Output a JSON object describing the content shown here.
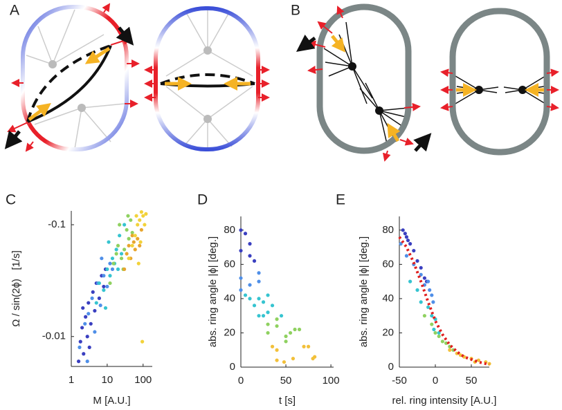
{
  "panels": {
    "A": "A",
    "B": "B"
  },
  "chart_data": [
    {
      "type": "scatter",
      "panel": "C",
      "xlabel": "M [A.U.]",
      "ylabel": "Ω / sin(2ϕ)   [1/s]",
      "xscale": "log",
      "yscale": "log",
      "xlim": [
        1,
        180
      ],
      "ylim": [
        -0.0054,
        -0.133
      ],
      "xticks": [
        1,
        10,
        100
      ],
      "yticks": [
        -0.1,
        -0.01
      ],
      "series": [
        {
          "color": "#3a3fc0",
          "x": [
            1.6,
            1.8,
            2,
            2.2,
            2.5,
            2.8,
            3,
            3.5,
            4,
            4.5,
            5,
            6,
            7,
            8,
            2.1,
            3.2,
            9
          ],
          "values": [
            -0.006,
            -0.009,
            -0.012,
            -0.007,
            -0.015,
            -0.01,
            -0.02,
            -0.013,
            -0.025,
            -0.017,
            -0.03,
            -0.022,
            -0.035,
            -0.028,
            -0.018,
            -0.008,
            -0.04
          ]
        },
        {
          "color": "#4f8fe8",
          "x": [
            1.7,
            2.4,
            3,
            3.8,
            4.5,
            5.5,
            6.5,
            8,
            10,
            12,
            14,
            2.8,
            7
          ],
          "values": [
            -0.008,
            -0.013,
            -0.016,
            -0.022,
            -0.011,
            -0.03,
            -0.019,
            -0.035,
            -0.028,
            -0.045,
            -0.04,
            -0.006,
            -0.05
          ]
        },
        {
          "color": "#36c4d0",
          "x": [
            5,
            6,
            8,
            10,
            12,
            14,
            16,
            18,
            20,
            25,
            9,
            11,
            22,
            30
          ],
          "values": [
            -0.02,
            -0.03,
            -0.026,
            -0.04,
            -0.035,
            -0.05,
            -0.045,
            -0.06,
            -0.04,
            -0.055,
            -0.018,
            -0.07,
            -0.08,
            -0.1
          ]
        },
        {
          "color": "#8fd160",
          "x": [
            12,
            15,
            18,
            20,
            25,
            30,
            35,
            40,
            45,
            28,
            22,
            38,
            50
          ],
          "values": [
            -0.03,
            -0.045,
            -0.055,
            -0.065,
            -0.05,
            -0.06,
            -0.09,
            -0.075,
            -0.11,
            -0.04,
            -0.1,
            -0.12,
            -0.085
          ]
        },
        {
          "color": "#e8a52e",
          "x": [
            30,
            35,
            45,
            55,
            60,
            70,
            80,
            90,
            40,
            50
          ],
          "values": [
            -0.04,
            -0.055,
            -0.05,
            -0.07,
            -0.06,
            -0.075,
            -0.065,
            -0.09,
            -0.065,
            -0.08
          ]
        },
        {
          "color": "#f2d23a",
          "x": [
            40,
            50,
            60,
            70,
            80,
            90,
            100,
            110,
            120,
            75,
            65,
            95,
            85
          ],
          "values": [
            -0.05,
            -0.065,
            -0.08,
            -0.1,
            -0.11,
            -0.13,
            -0.12,
            -0.1,
            -0.125,
            -0.045,
            -0.12,
            -0.009,
            -0.07
          ]
        }
      ]
    },
    {
      "type": "scatter",
      "panel": "D",
      "xlabel": "t [s]",
      "ylabel": "abs. ring angle |ϕ| [deg.]",
      "xlim": [
        0,
        103
      ],
      "ylim": [
        0,
        88
      ],
      "xticks": [
        0,
        50,
        100
      ],
      "yticks": [
        0,
        20,
        40,
        60,
        80
      ],
      "series": [
        {
          "color": "#3a3fc0",
          "x": [
            0,
            5,
            10,
            15,
            0,
            10
          ],
          "values": [
            80,
            78,
            72,
            62,
            68,
            65
          ]
        },
        {
          "color": "#4f8fe8",
          "x": [
            20,
            20,
            0,
            10,
            0
          ],
          "values": [
            50,
            55,
            52,
            48,
            45
          ]
        },
        {
          "color": "#36c4d0",
          "x": [
            25,
            30,
            20,
            30,
            10,
            20,
            5,
            15,
            25,
            35,
            45
          ],
          "values": [
            38,
            42,
            40,
            32,
            40,
            30,
            42,
            36,
            30,
            36,
            30
          ]
        },
        {
          "color": "#8fd160",
          "x": [
            30,
            40,
            50,
            40,
            50,
            60,
            30,
            55,
            65
          ],
          "values": [
            25,
            28,
            15,
            24,
            18,
            22,
            20,
            20,
            22
          ]
        },
        {
          "color": "#f2c03a",
          "x": [
            35,
            40,
            58,
            70,
            80,
            40,
            48,
            75,
            82
          ],
          "values": [
            12,
            4,
            5,
            12,
            5,
            10,
            3,
            12,
            6
          ]
        }
      ]
    },
    {
      "type": "scatter",
      "panel": "E",
      "xlabel": "rel. ring intensity [A.U.]",
      "ylabel": "abs. ring angle |ϕ| [deg.]",
      "xlim": [
        -50,
        75
      ],
      "ylim": [
        0,
        88
      ],
      "xticks": [
        -50,
        0,
        50
      ],
      "yticks": [
        0,
        20,
        40,
        60,
        80
      ],
      "series": [
        {
          "color": "#3a3fc0",
          "x": [
            -45,
            -42,
            -40,
            -38,
            -35,
            -30,
            -25,
            -20,
            -15,
            -12
          ],
          "values": [
            80,
            78,
            76,
            74,
            72,
            68,
            62,
            58,
            52,
            50
          ]
        },
        {
          "color": "#4f8fe8",
          "x": [
            -40,
            -30,
            -20,
            -15,
            -10,
            -8,
            -5,
            -3,
            -48
          ],
          "values": [
            65,
            60,
            54,
            48,
            50,
            45,
            42,
            38,
            72
          ]
        },
        {
          "color": "#36c4d0",
          "x": [
            -35,
            -25,
            -20,
            -10,
            -5,
            0,
            -2,
            5
          ],
          "values": [
            50,
            45,
            38,
            35,
            30,
            28,
            22,
            20
          ]
        },
        {
          "color": "#8fd160",
          "x": [
            -15,
            -5,
            0,
            5,
            10,
            15,
            20,
            25
          ],
          "values": [
            30,
            25,
            20,
            18,
            15,
            14,
            12,
            10
          ]
        },
        {
          "color": "#f2c03a",
          "x": [
            20,
            30,
            40,
            50,
            60,
            70,
            75,
            35,
            55
          ],
          "values": [
            10,
            8,
            6,
            5,
            4,
            3,
            2,
            7,
            3
          ]
        },
        {
          "color": "#e02020",
          "style": "dotted",
          "x": [
            -50,
            -40,
            -30,
            -20,
            -10,
            0,
            10,
            20,
            30,
            40,
            50,
            60,
            75
          ],
          "values": [
            76,
            70,
            61,
            50,
            38,
            27,
            19,
            13,
            9,
            6,
            4.5,
            3,
            1.5
          ]
        }
      ]
    }
  ]
}
